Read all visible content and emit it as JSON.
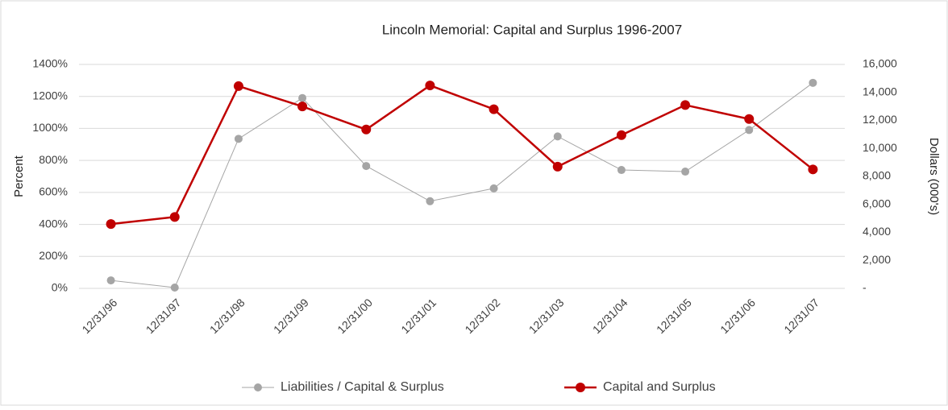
{
  "chart_data": {
    "type": "line",
    "title": "Lincoln Memorial: Capital and Surplus  1996-2007",
    "y_label": "Percent",
    "y2_label": "Dollars (000's)",
    "categories": [
      "12/31/96",
      "12/31/97",
      "12/31/98",
      "12/31/99",
      "12/31/00",
      "12/31/01",
      "12/31/02",
      "12/31/03",
      "12/31/04",
      "12/31/05",
      "12/31/06",
      "12/31/07"
    ],
    "series": [
      {
        "name": "Liabilities / Capital & Surplus",
        "color": "#a5a5a5",
        "axis": "y",
        "values": [
          50,
          5,
          935,
          1190,
          765,
          545,
          625,
          950,
          740,
          730,
          990,
          1285
        ]
      },
      {
        "name": "Capital and Surplus",
        "color": "#c00000",
        "axis": "y2",
        "values": [
          4600,
          5100,
          14450,
          13000,
          11350,
          14500,
          12800,
          8700,
          10950,
          13100,
          12100,
          8500
        ]
      }
    ],
    "ylim": [
      0,
      1400
    ],
    "yticks": [
      {
        "value": 0,
        "label": "0%"
      },
      {
        "value": 200,
        "label": "200%"
      },
      {
        "value": 400,
        "label": "400%"
      },
      {
        "value": 600,
        "label": "600%"
      },
      {
        "value": 800,
        "label": "800%"
      },
      {
        "value": 1000,
        "label": "1000%"
      },
      {
        "value": 1200,
        "label": "1200%"
      },
      {
        "value": 1400,
        "label": "1400%"
      }
    ],
    "y2lim": [
      0,
      16000
    ],
    "y2ticks": [
      {
        "value": 0,
        "label": "-"
      },
      {
        "value": 2000,
        "label": "2,000"
      },
      {
        "value": 4000,
        "label": "4,000"
      },
      {
        "value": 6000,
        "label": "6,000"
      },
      {
        "value": 8000,
        "label": "8,000"
      },
      {
        "value": 10000,
        "label": "10,000"
      },
      {
        "value": 12000,
        "label": "12,000"
      },
      {
        "value": 14000,
        "label": "14,000"
      },
      {
        "value": 16000,
        "label": "16,000"
      }
    ],
    "grid": true,
    "legend": "bottom"
  }
}
